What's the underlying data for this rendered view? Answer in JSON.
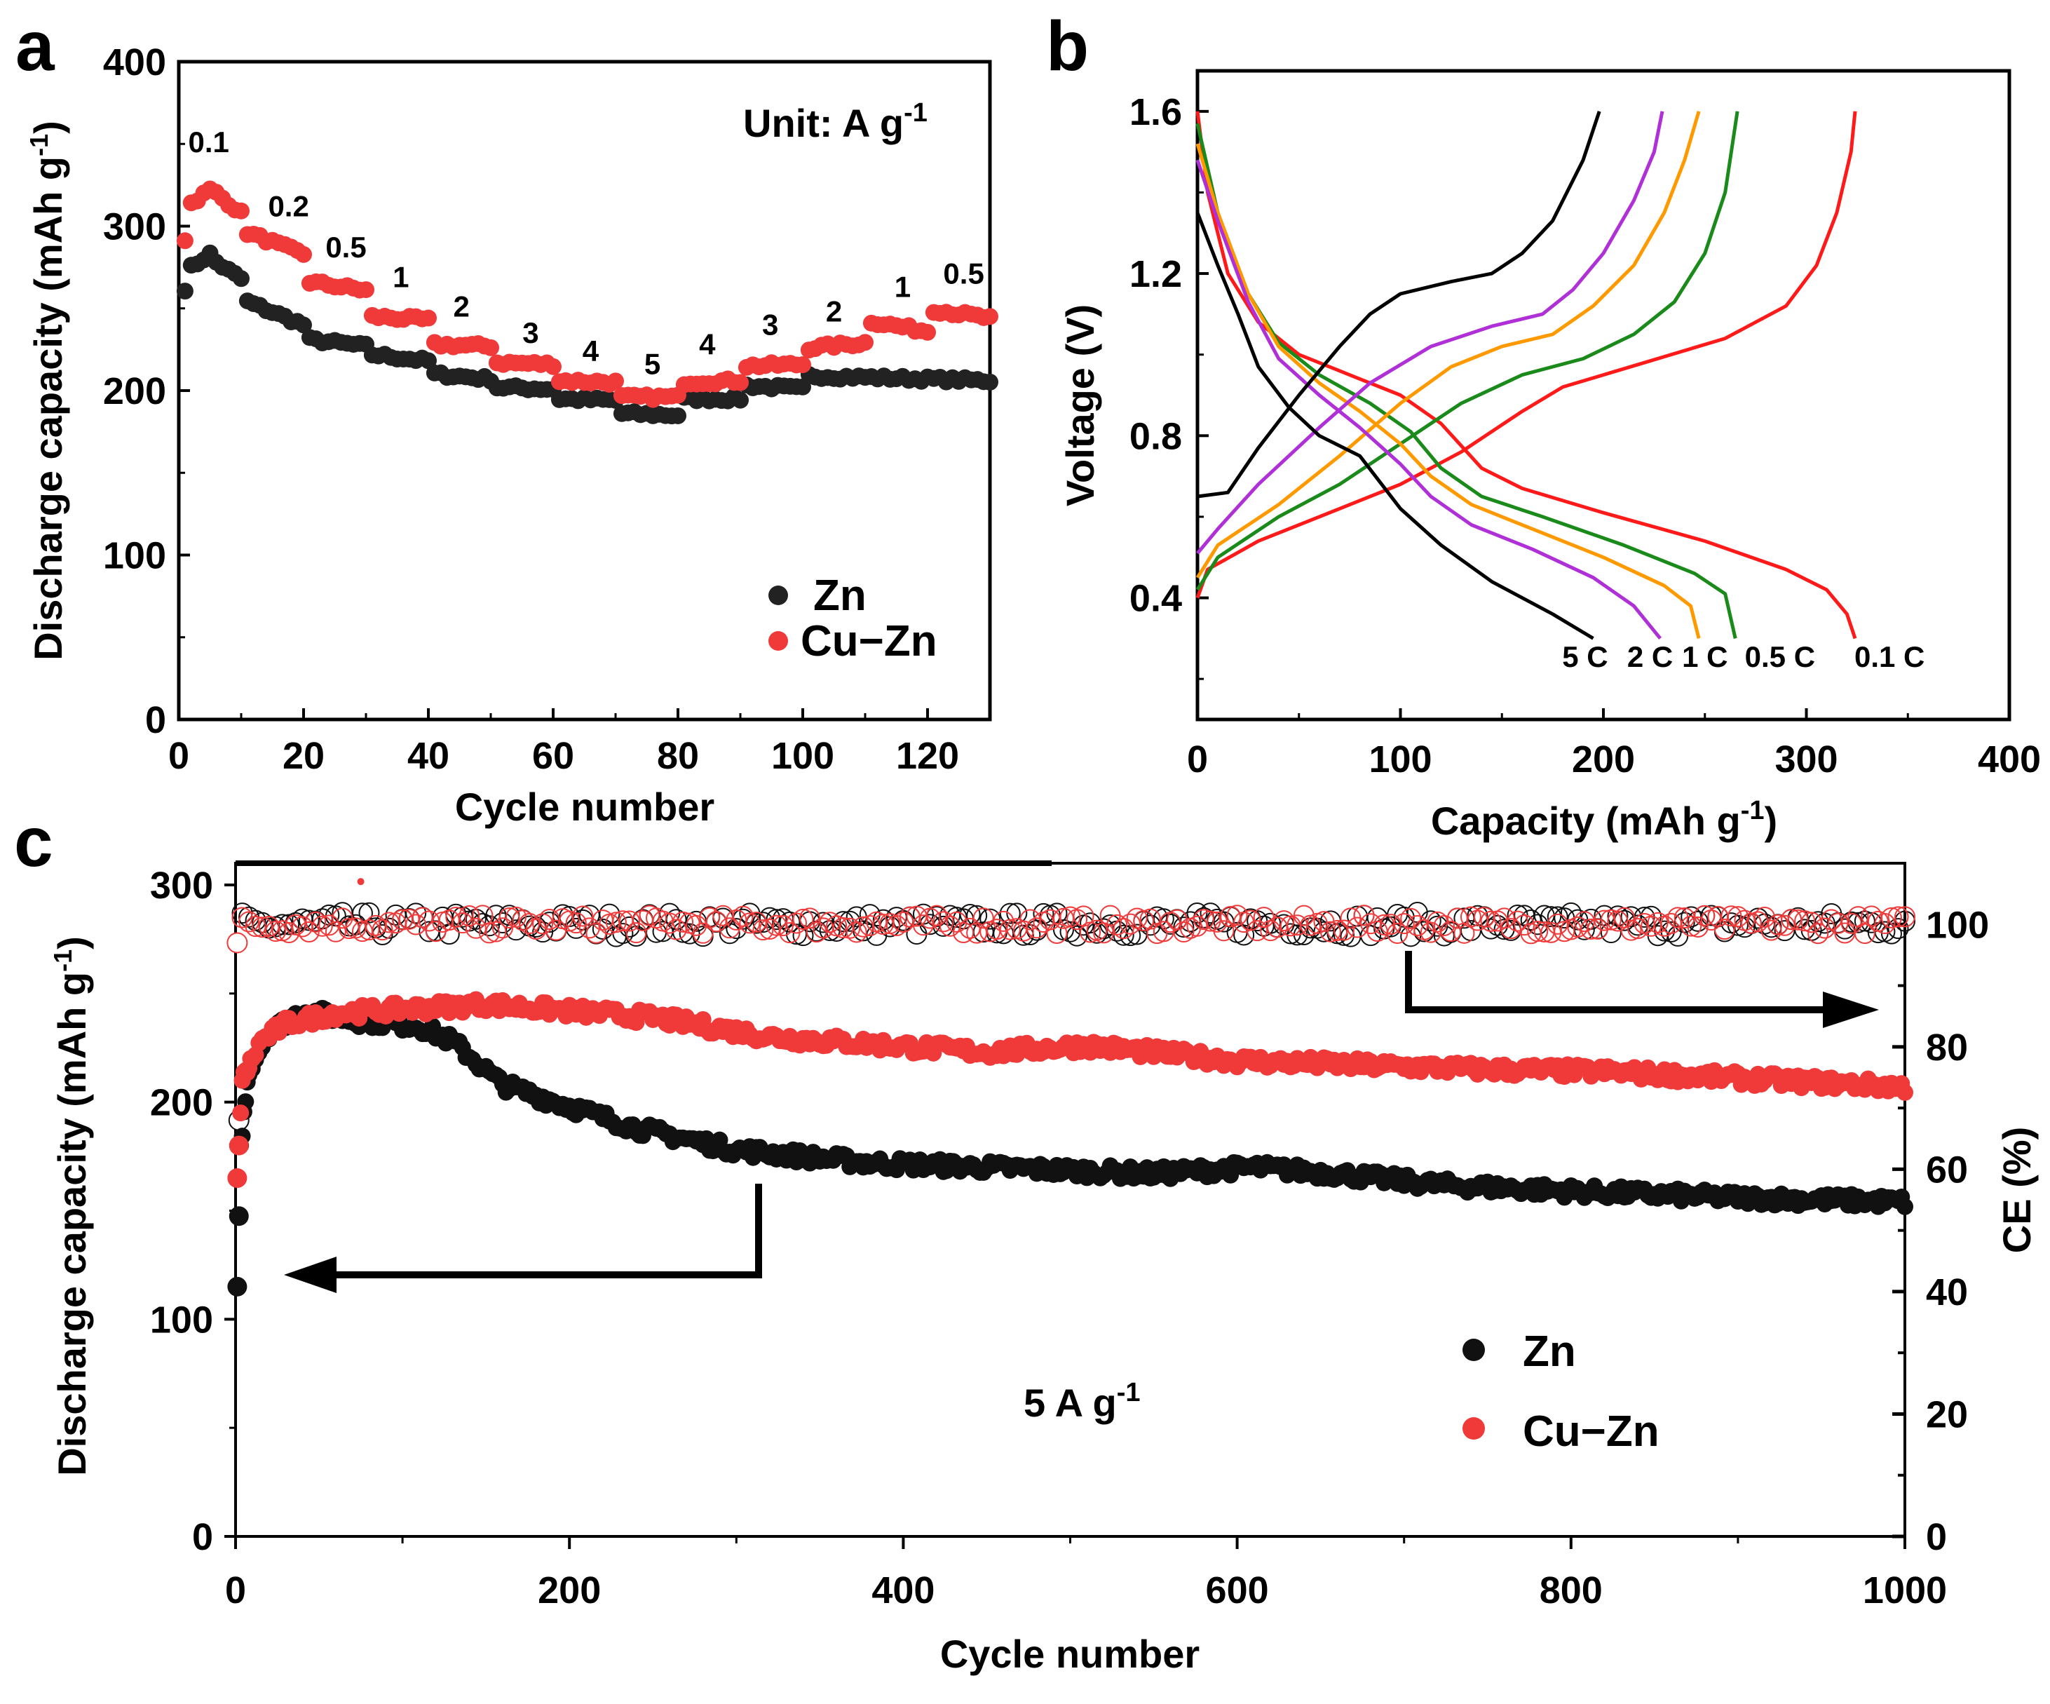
{
  "colors": {
    "zn": "#111111",
    "cuzn": "#f03a3a",
    "red": "#ff1a1a",
    "green": "#1a8a1a",
    "orange": "#ff9900",
    "purple": "#b030d8",
    "black": "#000000"
  },
  "chart_data": [
    {
      "panel": "a",
      "type": "scatter",
      "xlabel": "Cycle number",
      "ylabel": "Discharge capacity (mAh g-1)",
      "xlim": [
        0,
        130
      ],
      "ylim": [
        0,
        400
      ],
      "xticks": [
        0,
        20,
        40,
        60,
        80,
        100,
        120
      ],
      "yticks": [
        0,
        100,
        200,
        300,
        400
      ],
      "unit_note": "Unit: A g-1",
      "legend": [
        "Zn",
        "Cu−Zn"
      ],
      "legend_position": "bottom-right",
      "series": [
        {
          "name": "Zn",
          "blocks": [
            [
              1,
              1,
              262,
              262
            ],
            [
              2,
              5,
              275,
              283
            ],
            [
              6,
              10,
              278,
              268
            ],
            [
              11,
              20,
              254,
              240
            ],
            [
              21,
              30,
              231,
              227
            ],
            [
              31,
              40,
              222,
              218
            ],
            [
              41,
              50,
              210,
              207
            ],
            [
              51,
              60,
              202,
              201
            ],
            [
              61,
              70,
              195,
              194
            ],
            [
              71,
              80,
              186,
              185
            ],
            [
              81,
              90,
              195,
              195
            ],
            [
              91,
              100,
              203,
              201
            ],
            [
              101,
              130,
              209,
              206
            ]
          ]
        },
        {
          "name": "Cu−Zn",
          "blocks": [
            [
              1,
              1,
              292,
              292
            ],
            [
              2,
              5,
              314,
              322
            ],
            [
              6,
              10,
              320,
              308
            ],
            [
              11,
              20,
              296,
              283
            ],
            [
              21,
              30,
              266,
              261
            ],
            [
              31,
              40,
              245,
              243
            ],
            [
              41,
              50,
              228,
              227
            ],
            [
              51,
              60,
              217,
              216
            ],
            [
              61,
              70,
              206,
              205
            ],
            [
              71,
              80,
              196,
              196
            ],
            [
              81,
              90,
              205,
              206
            ],
            [
              91,
              100,
              215,
              216
            ],
            [
              101,
              110,
              226,
              229
            ],
            [
              111,
              120,
              242,
              236
            ],
            [
              121,
              130,
              249,
              244
            ]
          ]
        }
      ],
      "rate_labels": [
        {
          "text": "0.1",
          "cycle": 4.8,
          "cap": 345
        },
        {
          "text": "0.2",
          "cycle": 17.6,
          "cap": 306
        },
        {
          "text": "0.5",
          "cycle": 26.8,
          "cap": 281
        },
        {
          "text": "1",
          "cycle": 35.6,
          "cap": 263
        },
        {
          "text": "2",
          "cycle": 45.3,
          "cap": 245
        },
        {
          "text": "3",
          "cycle": 56.4,
          "cap": 229
        },
        {
          "text": "4",
          "cycle": 66,
          "cap": 218
        },
        {
          "text": "5",
          "cycle": 75.9,
          "cap": 210
        },
        {
          "text": "4",
          "cycle": 84.7,
          "cap": 222
        },
        {
          "text": "3",
          "cycle": 94.8,
          "cap": 234
        },
        {
          "text": "2",
          "cycle": 105,
          "cap": 242
        },
        {
          "text": "1",
          "cycle": 116,
          "cap": 257
        },
        {
          "text": "0.5",
          "cycle": 125.8,
          "cap": 265
        }
      ]
    },
    {
      "panel": "b",
      "type": "line",
      "xlabel": "Capacity (mAh g-1)",
      "ylabel": "Voltage (V)",
      "xlim": [
        0,
        400
      ],
      "ylim": [
        0.1,
        1.7
      ],
      "xticks": [
        0,
        100,
        200,
        300,
        400
      ],
      "yticks": [
        0.4,
        0.8,
        1.2,
        1.6
      ],
      "series": [
        {
          "name": "0.1 C",
          "color": "red",
          "label_pos": [
            341,
            0.23
          ],
          "discharge": [
            [
              0,
              1.6
            ],
            [
              5,
              1.4
            ],
            [
              15,
              1.2
            ],
            [
              30,
              1.08
            ],
            [
              50,
              1.0
            ],
            [
              80,
              0.94
            ],
            [
              100,
              0.9
            ],
            [
              120,
              0.83
            ],
            [
              140,
              0.72
            ],
            [
              160,
              0.67
            ],
            [
              200,
              0.61
            ],
            [
              250,
              0.54
            ],
            [
              290,
              0.47
            ],
            [
              310,
              0.42
            ],
            [
              320,
              0.36
            ],
            [
              324,
              0.3
            ]
          ],
          "charge": [
            [
              0,
              0.4
            ],
            [
              5,
              0.47
            ],
            [
              30,
              0.54
            ],
            [
              70,
              0.62
            ],
            [
              100,
              0.68
            ],
            [
              130,
              0.76
            ],
            [
              160,
              0.86
            ],
            [
              180,
              0.92
            ],
            [
              220,
              0.98
            ],
            [
              260,
              1.04
            ],
            [
              290,
              1.12
            ],
            [
              305,
              1.22
            ],
            [
              315,
              1.35
            ],
            [
              322,
              1.5
            ],
            [
              324,
              1.6
            ]
          ]
        },
        {
          "name": "0.5 C",
          "color": "green",
          "label_pos": [
            287,
            0.23
          ],
          "discharge": [
            [
              0,
              1.57
            ],
            [
              10,
              1.35
            ],
            [
              25,
              1.15
            ],
            [
              40,
              1.03
            ],
            [
              60,
              0.95
            ],
            [
              85,
              0.88
            ],
            [
              105,
              0.81
            ],
            [
              120,
              0.72
            ],
            [
              140,
              0.65
            ],
            [
              170,
              0.6
            ],
            [
              210,
              0.53
            ],
            [
              245,
              0.46
            ],
            [
              260,
              0.41
            ],
            [
              265,
              0.3
            ]
          ],
          "charge": [
            [
              0,
              0.42
            ],
            [
              10,
              0.5
            ],
            [
              40,
              0.6
            ],
            [
              70,
              0.68
            ],
            [
              100,
              0.78
            ],
            [
              130,
              0.88
            ],
            [
              160,
              0.95
            ],
            [
              190,
              0.99
            ],
            [
              215,
              1.05
            ],
            [
              235,
              1.13
            ],
            [
              250,
              1.25
            ],
            [
              260,
              1.4
            ],
            [
              266,
              1.6
            ]
          ]
        },
        {
          "name": "1 C",
          "color": "orange",
          "label_pos": [
            250,
            0.23
          ],
          "discharge": [
            [
              0,
              1.52
            ],
            [
              10,
              1.35
            ],
            [
              25,
              1.15
            ],
            [
              40,
              1.02
            ],
            [
              60,
              0.93
            ],
            [
              80,
              0.86
            ],
            [
              100,
              0.78
            ],
            [
              115,
              0.7
            ],
            [
              135,
              0.63
            ],
            [
              165,
              0.57
            ],
            [
              200,
              0.5
            ],
            [
              230,
              0.43
            ],
            [
              243,
              0.38
            ],
            [
              247,
              0.3
            ]
          ],
          "charge": [
            [
              0,
              0.45
            ],
            [
              10,
              0.53
            ],
            [
              40,
              0.63
            ],
            [
              70,
              0.75
            ],
            [
              100,
              0.88
            ],
            [
              125,
              0.97
            ],
            [
              150,
              1.02
            ],
            [
              175,
              1.05
            ],
            [
              195,
              1.12
            ],
            [
              215,
              1.22
            ],
            [
              230,
              1.35
            ],
            [
              240,
              1.48
            ],
            [
              247,
              1.6
            ]
          ]
        },
        {
          "name": "2 C",
          "color": "purple",
          "label_pos": [
            223,
            0.23
          ],
          "discharge": [
            [
              0,
              1.48
            ],
            [
              10,
              1.33
            ],
            [
              25,
              1.13
            ],
            [
              40,
              0.99
            ],
            [
              60,
              0.9
            ],
            [
              80,
              0.82
            ],
            [
              100,
              0.73
            ],
            [
              115,
              0.65
            ],
            [
              135,
              0.58
            ],
            [
              165,
              0.52
            ],
            [
              195,
              0.45
            ],
            [
              215,
              0.38
            ],
            [
              228,
              0.3
            ]
          ],
          "charge": [
            [
              0,
              0.51
            ],
            [
              10,
              0.57
            ],
            [
              30,
              0.68
            ],
            [
              60,
              0.82
            ],
            [
              85,
              0.93
            ],
            [
              115,
              1.02
            ],
            [
              145,
              1.07
            ],
            [
              170,
              1.1
            ],
            [
              185,
              1.16
            ],
            [
              200,
              1.25
            ],
            [
              215,
              1.38
            ],
            [
              225,
              1.5
            ],
            [
              229,
              1.6
            ]
          ]
        },
        {
          "name": "5 C",
          "color": "black",
          "label_pos": [
            191,
            0.23
          ],
          "discharge": [
            [
              0,
              1.35
            ],
            [
              10,
              1.22
            ],
            [
              20,
              1.1
            ],
            [
              30,
              0.97
            ],
            [
              45,
              0.87
            ],
            [
              60,
              0.8
            ],
            [
              80,
              0.75
            ],
            [
              100,
              0.62
            ],
            [
              120,
              0.53
            ],
            [
              145,
              0.44
            ],
            [
              175,
              0.36
            ],
            [
              195,
              0.3
            ]
          ],
          "charge": [
            [
              0,
              0.65
            ],
            [
              15,
              0.66
            ],
            [
              30,
              0.77
            ],
            [
              50,
              0.9
            ],
            [
              70,
              1.02
            ],
            [
              85,
              1.1
            ],
            [
              100,
              1.15
            ],
            [
              125,
              1.18
            ],
            [
              145,
              1.2
            ],
            [
              160,
              1.25
            ],
            [
              175,
              1.33
            ],
            [
              190,
              1.48
            ],
            [
              198,
              1.6
            ]
          ]
        }
      ]
    },
    {
      "panel": "c",
      "type": "scatter",
      "xlabel": "Cycle number",
      "ylabel": "Discharge capacity (mAh g-1)",
      "y2label": "CE (%)",
      "xlim": [
        0,
        1000
      ],
      "ylim": [
        0,
        310
      ],
      "y2lim": [
        0,
        110
      ],
      "xticks": [
        0,
        200,
        400,
        600,
        800,
        1000
      ],
      "yticks": [
        0,
        100,
        200,
        300
      ],
      "y2ticks": [
        0,
        20,
        40,
        60,
        80,
        100
      ],
      "current_note": "5 A g-1",
      "legend": [
        "Zn",
        "Cu−Zn"
      ],
      "legend_position": "bottom-right",
      "capacity": [
        {
          "name": "Zn",
          "anchors": [
            [
              1,
              115
            ],
            [
              3,
              180
            ],
            [
              8,
              215
            ],
            [
              20,
              232
            ],
            [
              40,
              242
            ],
            [
              70,
              238
            ],
            [
              110,
              235
            ],
            [
              130,
              228
            ],
            [
              160,
              208
            ],
            [
              200,
              198
            ],
            [
              240,
              188
            ],
            [
              300,
              178
            ],
            [
              380,
              172
            ],
            [
              450,
              170
            ],
            [
              550,
              167
            ],
            [
              610,
              170
            ],
            [
              660,
              167
            ],
            [
              720,
              162
            ],
            [
              800,
              159
            ],
            [
              900,
              156
            ],
            [
              1000,
              154
            ]
          ]
        },
        {
          "name": "Cu−Zn",
          "anchors": [
            [
              1,
              165
            ],
            [
              4,
              210
            ],
            [
              15,
              228
            ],
            [
              30,
              236
            ],
            [
              60,
              241
            ],
            [
              150,
              245
            ],
            [
              250,
              239
            ],
            [
              320,
              230
            ],
            [
              450,
              223
            ],
            [
              510,
              226
            ],
            [
              600,
              219
            ],
            [
              750,
              215
            ],
            [
              820,
              214
            ],
            [
              900,
              211
            ],
            [
              1000,
              207
            ]
          ]
        }
      ],
      "ce": [
        {
          "name": "Zn",
          "first": [
            2,
            68
          ],
          "typical": 100
        },
        {
          "name": "Cu−Zn",
          "first": [
            1,
            97
          ],
          "typical": 100,
          "outlier": [
            75,
            107
          ]
        }
      ]
    }
  ],
  "panels": {
    "a": {
      "letter": "a",
      "xlabel": "Cycle number",
      "ylabel": "Discharge capacity (mAh g",
      "ylabel_sup": "-1",
      "ylabel_end": ")",
      "unit": "Unit: A g",
      "unit_sup": "-1",
      "legend_zn": "Zn",
      "legend_cuzn": "Cu−Zn"
    },
    "b": {
      "letter": "b",
      "xlabel": "Capacity (mAh g",
      "xlabel_sup": "-1",
      "xlabel_end": ")",
      "ylabel": "Voltage (V)"
    },
    "c": {
      "letter": "c",
      "xlabel": "Cycle number",
      "ylabel": "Discharge capacity (mAh g",
      "ylabel_sup": "-1",
      "ylabel_end": ")",
      "y2label": "CE (%)",
      "note": "5 A g",
      "note_sup": "-1",
      "legend_zn": "Zn",
      "legend_cuzn": "Cu−Zn"
    }
  }
}
